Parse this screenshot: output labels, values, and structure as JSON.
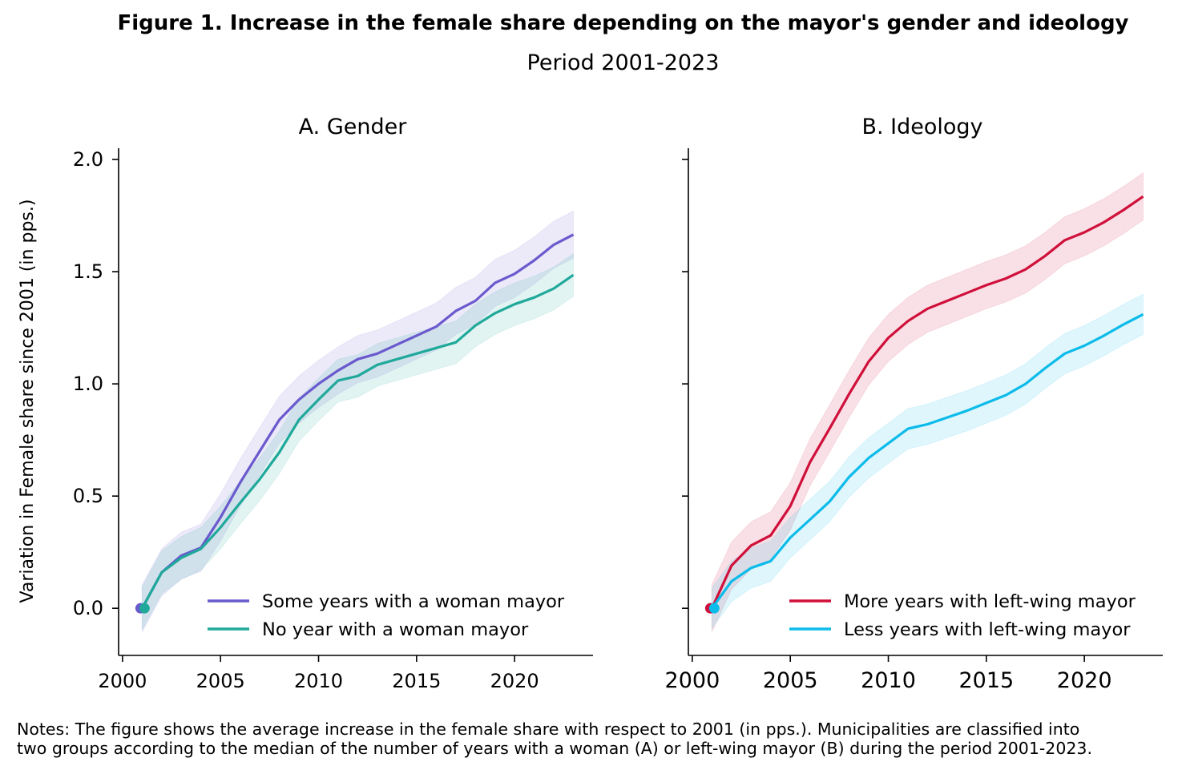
{
  "title": "Figure 1. Increase in the female share depending on the mayor's gender and ideology",
  "subtitle": "Period 2001-2023",
  "notes": [
    "Notes: The figure shows the average increase in the female share with respect to 2001 (in pps.). Municipalities are classified into",
    "two groups according to the median of the number of years with a woman (A) or left-wing mayor (B) during the period 2001-2023."
  ],
  "chart_data": [
    {
      "type": "line",
      "title": "A. Gender",
      "xlabel": "",
      "ylabel": "Variation in Female share since 2001 (in pps.)",
      "xlim": [
        1999.8,
        2024
      ],
      "ylim": [
        -0.21,
        2.05
      ],
      "xticks": [
        2000,
        2005,
        2010,
        2015,
        2020
      ],
      "yticks": [
        0.0,
        0.5,
        1.0,
        1.5,
        2.0
      ],
      "ytick_labels": [
        "0.0",
        "0.5",
        "1.0",
        "1.5",
        "2.0"
      ],
      "legend_position": "lower right",
      "x": [
        2001,
        2002,
        2003,
        2004,
        2005,
        2006,
        2007,
        2008,
        2009,
        2010,
        2011,
        2012,
        2013,
        2014,
        2015,
        2016,
        2017,
        2018,
        2019,
        2020,
        2021,
        2022,
        2023
      ],
      "series": [
        {
          "name": "Some years with a woman mayor",
          "color": "#6a5acd",
          "values": [
            0.0,
            0.16,
            0.235,
            0.27,
            0.405,
            0.56,
            0.7,
            0.84,
            0.93,
            1.0,
            1.06,
            1.11,
            1.135,
            1.175,
            1.215,
            1.255,
            1.325,
            1.37,
            1.45,
            1.49,
            1.55,
            1.62,
            1.665
          ],
          "ci_halfwidth": 0.105
        },
        {
          "name": "No year with a woman mayor",
          "color": "#20a99b",
          "values": [
            0.0,
            0.16,
            0.225,
            0.265,
            0.36,
            0.47,
            0.575,
            0.695,
            0.84,
            0.93,
            1.015,
            1.035,
            1.085,
            1.11,
            1.135,
            1.16,
            1.185,
            1.26,
            1.315,
            1.355,
            1.385,
            1.425,
            1.485
          ],
          "ci_halfwidth": 0.095
        }
      ]
    },
    {
      "type": "line",
      "title": "B. Ideology",
      "xlabel": "",
      "ylabel": "",
      "xlim": [
        1999.8,
        2024
      ],
      "ylim": [
        -0.21,
        2.05
      ],
      "xticks": [
        2000,
        2005,
        2010,
        2015,
        2020
      ],
      "yticks": [
        0.0,
        0.5,
        1.0,
        1.5,
        2.0
      ],
      "legend_position": "lower right",
      "x": [
        2001,
        2002,
        2003,
        2004,
        2005,
        2006,
        2007,
        2008,
        2009,
        2010,
        2011,
        2012,
        2013,
        2014,
        2015,
        2016,
        2017,
        2018,
        2019,
        2020,
        2021,
        2022,
        2023
      ],
      "series": [
        {
          "name": "More years with left-wing mayor",
          "color": "#d0103a",
          "values": [
            0.0,
            0.19,
            0.28,
            0.325,
            0.455,
            0.65,
            0.8,
            0.955,
            1.1,
            1.205,
            1.28,
            1.335,
            1.37,
            1.405,
            1.44,
            1.47,
            1.51,
            1.57,
            1.64,
            1.675,
            1.72,
            1.775,
            1.835
          ],
          "ci_halfwidth": 0.105
        },
        {
          "name": "Less years with left-wing mayor",
          "color": "#0bbbea",
          "values": [
            0.0,
            0.12,
            0.18,
            0.21,
            0.315,
            0.395,
            0.475,
            0.585,
            0.67,
            0.735,
            0.8,
            0.82,
            0.85,
            0.88,
            0.915,
            0.95,
            1.0,
            1.07,
            1.135,
            1.17,
            1.215,
            1.265,
            1.31
          ],
          "ci_halfwidth": 0.09
        }
      ]
    }
  ]
}
